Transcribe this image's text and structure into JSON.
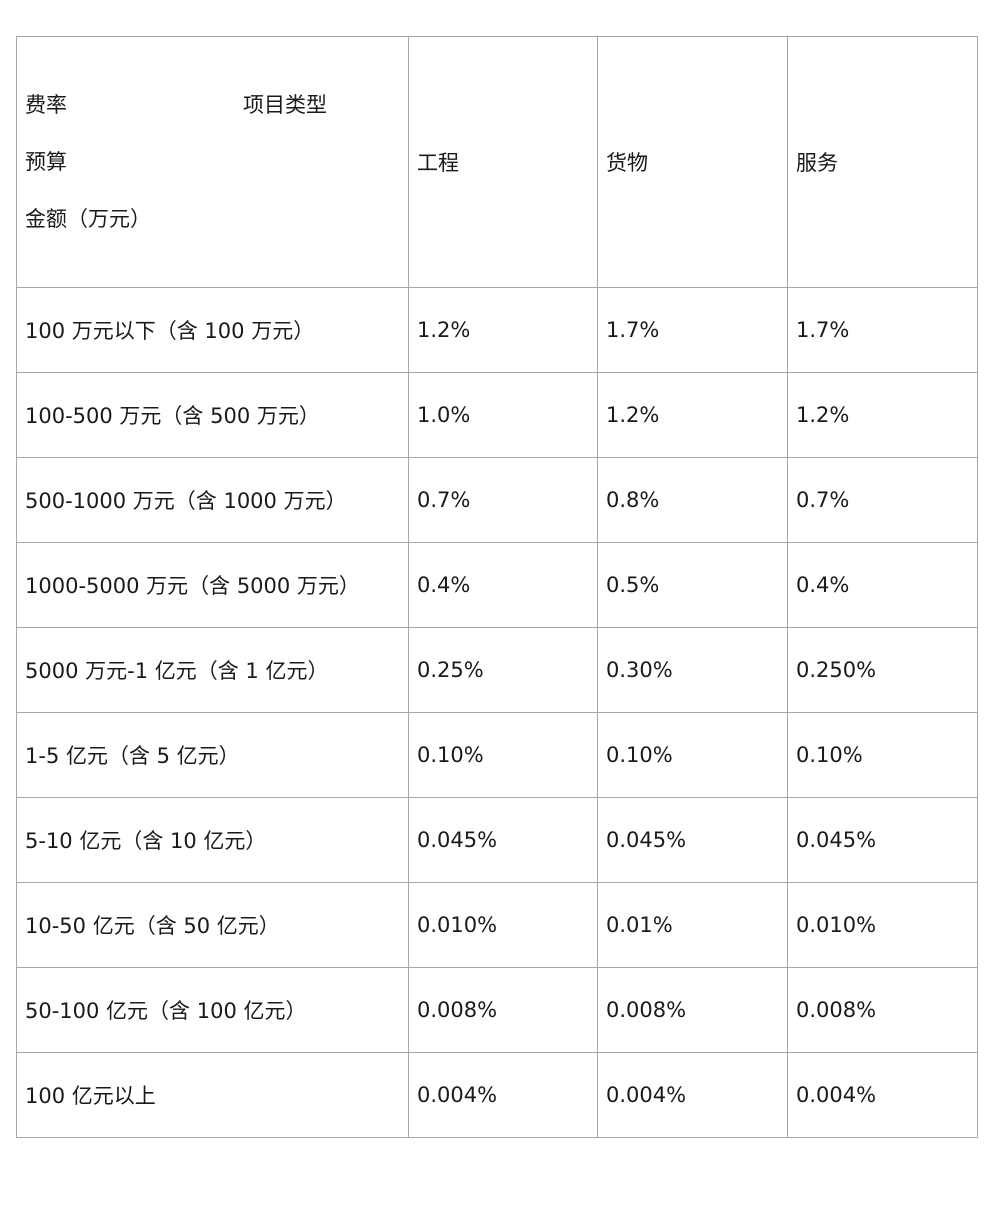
{
  "table": {
    "header": {
      "corner_rate": "费率",
      "corner_type": "项目类型",
      "corner_budget": "预算",
      "corner_amount": "金额（万元）",
      "columns": [
        "工程",
        "货物",
        "服务"
      ]
    },
    "rows": [
      {
        "range": "100 万元以下（含 100 万元）",
        "engineering": "1.2%",
        "goods": "1.7%",
        "service": "1.7%"
      },
      {
        "range": "100-500 万元（含 500 万元）",
        "engineering": "1.0%",
        "goods": "1.2%",
        "service": "1.2%"
      },
      {
        "range": "500-1000 万元（含 1000 万元）",
        "engineering": "0.7%",
        "goods": "0.8%",
        "service": "0.7%"
      },
      {
        "range": "1000-5000 万元（含 5000 万元）",
        "engineering": "0.4%",
        "goods": "0.5%",
        "service": "0.4%"
      },
      {
        "range": "5000 万元-1 亿元（含 1 亿元）",
        "engineering": "0.25%",
        "goods": "0.30%",
        "service": "0.250%"
      },
      {
        "range": "1-5 亿元（含 5 亿元）",
        "engineering": "0.10%",
        "goods": "0.10%",
        "service": "0.10%"
      },
      {
        "range": "5-10 亿元（含 10 亿元）",
        "engineering": "0.045%",
        "goods": "0.045%",
        "service": "0.045%"
      },
      {
        "range": "10-50 亿元（含 50 亿元）",
        "engineering": "0.010%",
        "goods": "0.01%",
        "service": "0.010%"
      },
      {
        "range": "50-100 亿元（含 100 亿元）",
        "engineering": "0.008%",
        "goods": "0.008%",
        "service": "0.008%"
      },
      {
        "range": "100 亿元以上",
        "engineering": "0.004%",
        "goods": "0.004%",
        "service": "0.004%"
      }
    ]
  }
}
